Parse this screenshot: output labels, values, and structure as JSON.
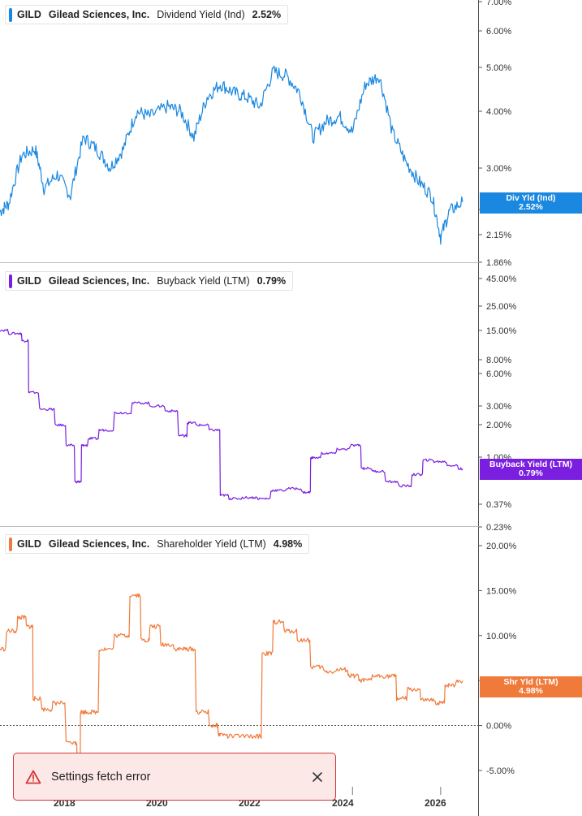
{
  "chart_data": [
    {
      "type": "line",
      "ticker": "GILD",
      "company": "Gilead Sciences, Inc.",
      "metric": "Dividend Yield (Ind)",
      "current_value": "2.52%",
      "flag_label": "Div Yld (Ind)",
      "color": "#1a88e0",
      "y_scale": "log",
      "ylim": [
        1.86,
        7.0
      ],
      "y_ticks": [
        "7.00%",
        "6.00%",
        "5.00%",
        "4.00%",
        "3.00%",
        "2.44%",
        "2.15%",
        "1.86%"
      ],
      "x": [
        2016.0,
        2016.2,
        2016.5,
        2016.8,
        2017.0,
        2017.3,
        2017.6,
        2017.9,
        2018.2,
        2018.5,
        2018.8,
        2019.1,
        2019.4,
        2019.8,
        2020.1,
        2020.4,
        2020.7,
        2021.0,
        2021.3,
        2021.6,
        2021.9,
        2022.2,
        2022.5,
        2022.8,
        2023.1,
        2023.4,
        2023.7,
        2024.0,
        2024.3,
        2024.6,
        2024.9,
        2025.2,
        2025.5,
        2025.8,
        2026.0,
        2026.2,
        2026.5
      ],
      "y": [
        2.4,
        2.5,
        3.2,
        3.3,
        2.7,
        2.9,
        2.6,
        3.5,
        3.3,
        3.0,
        3.3,
        4.0,
        3.9,
        4.1,
        4.0,
        3.5,
        4.3,
        4.6,
        4.4,
        4.3,
        4.1,
        4.9,
        4.8,
        4.4,
        3.5,
        3.8,
        3.9,
        3.6,
        4.6,
        4.8,
        3.6,
        3.1,
        2.8,
        2.6,
        2.1,
        2.4,
        2.52
      ]
    },
    {
      "type": "line",
      "ticker": "GILD",
      "company": "Gilead Sciences, Inc.",
      "metric": "Buyback Yield (LTM)",
      "current_value": "0.79%",
      "flag_label": "Buyback Yield (LTM)",
      "color": "#7a1fe0",
      "y_scale": "log",
      "ylim": [
        0.23,
        45.0
      ],
      "y_ticks": [
        "45.00%",
        "25.00%",
        "15.00%",
        "8.00%",
        "6.00%",
        "3.00%",
        "2.00%",
        "1.00%",
        "0.37%",
        "0.23%"
      ],
      "x": [
        2016.0,
        2016.4,
        2016.6,
        2016.7,
        2017.1,
        2017.4,
        2017.6,
        2017.8,
        2017.9,
        2018.1,
        2018.4,
        2018.8,
        2019.2,
        2019.6,
        2019.9,
        2020.2,
        2020.3,
        2020.6,
        2020.9,
        2021.1,
        2021.3,
        2021.7,
        2022.0,
        2022.3,
        2022.7,
        2023.0,
        2023.1,
        2023.5,
        2023.8,
        2024.1,
        2024.3,
        2024.6,
        2024.9,
        2025.2,
        2025.5,
        2025.7,
        2026.0,
        2026.3,
        2026.5
      ],
      "y": [
        15.0,
        14.0,
        12.0,
        4.0,
        2.8,
        2.0,
        1.3,
        0.6,
        1.3,
        1.5,
        1.8,
        2.6,
        3.2,
        3.0,
        2.7,
        1.6,
        2.1,
        2.0,
        1.8,
        0.45,
        0.42,
        0.43,
        0.42,
        0.5,
        0.52,
        0.48,
        1.0,
        1.1,
        1.2,
        1.3,
        0.8,
        0.75,
        0.6,
        0.55,
        0.7,
        0.95,
        0.92,
        0.85,
        0.79
      ]
    },
    {
      "type": "line",
      "ticker": "GILD",
      "company": "Gilead Sciences, Inc.",
      "metric": "Shareholder Yield (LTM)",
      "current_value": "4.98%",
      "flag_label": "Shr Yld (LTM)",
      "color": "#f07a3a",
      "y_scale": "linear",
      "ylim": [
        -6.0,
        20.0
      ],
      "y_ticks": [
        "20.00%",
        "15.00%",
        "10.00%",
        "5.0%",
        "0.00%",
        "-5.00%"
      ],
      "x": [
        2016.0,
        2016.3,
        2016.5,
        2016.7,
        2016.8,
        2017.1,
        2017.3,
        2017.7,
        2017.8,
        2017.85,
        2018.1,
        2018.4,
        2018.8,
        2019.1,
        2019.3,
        2019.5,
        2019.8,
        2020.1,
        2020.3,
        2020.6,
        2020.9,
        2021.0,
        2021.3,
        2021.8,
        2022.1,
        2022.3,
        2022.6,
        2022.9,
        2023.2,
        2023.5,
        2023.8,
        2024.0,
        2024.3,
        2024.6,
        2024.9,
        2025.1,
        2025.4,
        2025.7,
        2026.0,
        2026.2,
        2026.5
      ],
      "y": [
        8.5,
        10.5,
        12.0,
        11.0,
        3.0,
        1.8,
        2.5,
        -2.0,
        -4.0,
        1.5,
        1.5,
        8.5,
        10.0,
        14.5,
        9.5,
        11.0,
        9.0,
        8.5,
        8.5,
        1.5,
        0.0,
        -1.0,
        -1.2,
        -1.2,
        8.0,
        11.5,
        10.5,
        9.5,
        6.5,
        6.0,
        6.2,
        5.5,
        5.0,
        5.5,
        5.5,
        3.0,
        4.0,
        2.8,
        2.5,
        4.5,
        4.98
      ]
    }
  ],
  "x_axis": {
    "labels": [
      "2018",
      "2020",
      "2022",
      "2024",
      "2026"
    ]
  },
  "toast": {
    "message": "Settings fetch error",
    "icon": "warning-triangle-icon",
    "close_icon": "close-icon"
  }
}
